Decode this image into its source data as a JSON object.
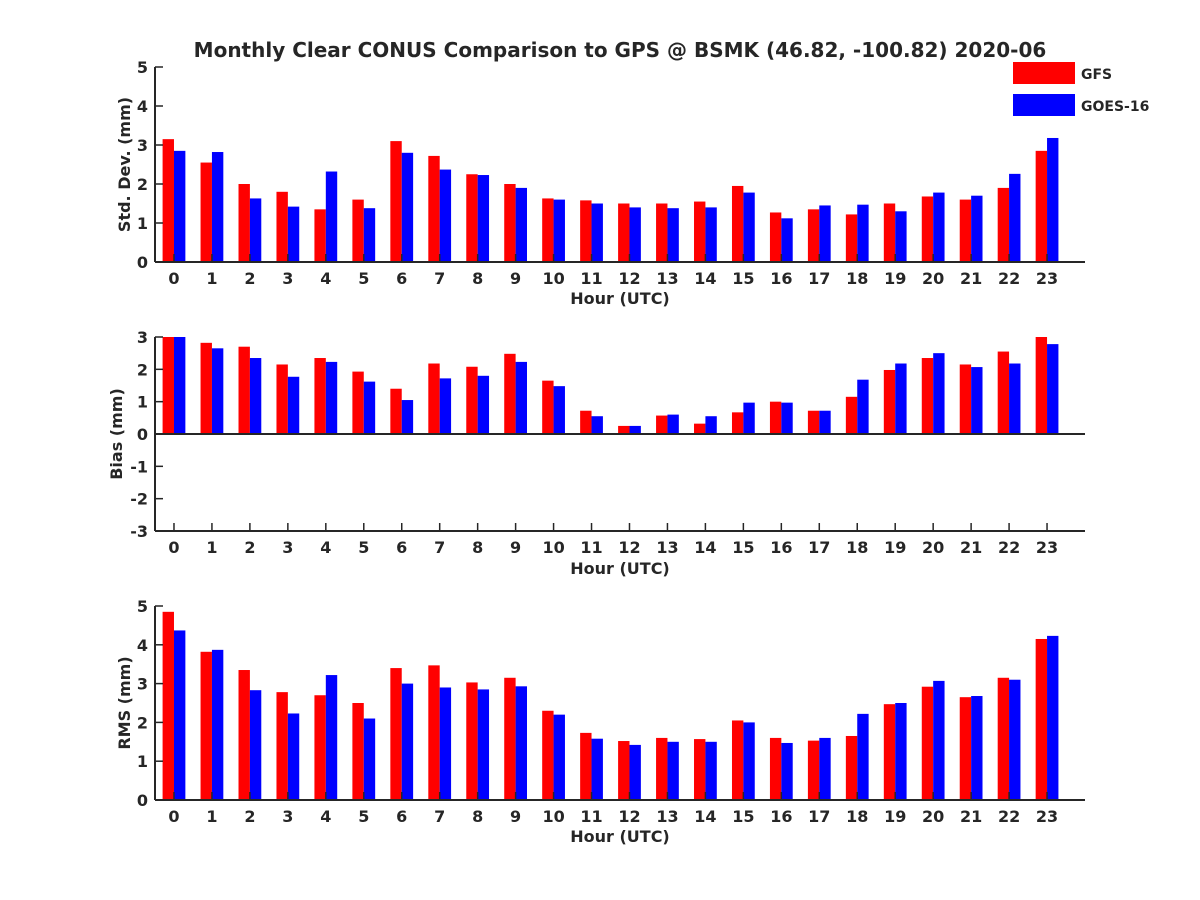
{
  "title": "Monthly Clear CONUS Comparison to GPS @ BSMK (46.82, -100.82) 2020-06",
  "colors": {
    "GFS": "#ff0000",
    "GOES-16": "#0000ff",
    "axis": "#262626"
  },
  "legend": {
    "placement": "top-right",
    "items": [
      "GFS",
      "GOES-16"
    ]
  },
  "chart_data": [
    {
      "type": "bar",
      "xlabel": "Hour (UTC)",
      "ylabel": "Std. Dev. (mm)",
      "ylim": [
        0,
        5
      ],
      "yticks": [
        0,
        1,
        2,
        3,
        4,
        5
      ],
      "categories": [
        "0",
        "1",
        "2",
        "3",
        "4",
        "5",
        "6",
        "7",
        "8",
        "9",
        "10",
        "11",
        "12",
        "13",
        "14",
        "15",
        "16",
        "17",
        "18",
        "19",
        "20",
        "21",
        "22",
        "23"
      ],
      "series": [
        {
          "name": "GFS",
          "values": [
            3.15,
            2.55,
            2.0,
            1.8,
            1.35,
            1.6,
            3.1,
            2.72,
            2.25,
            2.0,
            1.63,
            1.58,
            1.5,
            1.5,
            1.55,
            1.95,
            1.27,
            1.35,
            1.22,
            1.5,
            1.68,
            1.6,
            1.9,
            2.85
          ]
        },
        {
          "name": "GOES-16",
          "values": [
            2.85,
            2.82,
            1.63,
            1.42,
            2.32,
            1.38,
            2.8,
            2.37,
            2.23,
            1.9,
            1.6,
            1.5,
            1.4,
            1.38,
            1.4,
            1.78,
            1.12,
            1.45,
            1.47,
            1.3,
            1.78,
            1.7,
            2.26,
            3.18
          ]
        }
      ]
    },
    {
      "type": "bar",
      "xlabel": "Hour (UTC)",
      "ylabel": "Bias (mm)",
      "ylim": [
        -3,
        3
      ],
      "yticks": [
        -3,
        -2,
        -1,
        0,
        1,
        2,
        3
      ],
      "categories": [
        "0",
        "1",
        "2",
        "3",
        "4",
        "5",
        "6",
        "7",
        "8",
        "9",
        "10",
        "11",
        "12",
        "13",
        "14",
        "15",
        "16",
        "17",
        "18",
        "19",
        "20",
        "21",
        "22",
        "23"
      ],
      "series": [
        {
          "name": "GFS",
          "values": [
            3.0,
            2.82,
            2.7,
            2.15,
            2.35,
            1.93,
            1.4,
            2.18,
            2.08,
            2.48,
            1.65,
            0.72,
            0.25,
            0.57,
            0.32,
            0.67,
            1.0,
            0.72,
            1.15,
            1.98,
            2.35,
            2.15,
            2.55,
            3.0
          ]
        },
        {
          "name": "GOES-16",
          "values": [
            3.0,
            2.65,
            2.35,
            1.77,
            2.23,
            1.62,
            1.05,
            1.72,
            1.8,
            2.23,
            1.48,
            0.55,
            0.25,
            0.6,
            0.55,
            0.97,
            0.97,
            0.72,
            1.68,
            2.18,
            2.5,
            2.07,
            2.18,
            2.78
          ]
        }
      ]
    },
    {
      "type": "bar",
      "xlabel": "Hour (UTC)",
      "ylabel": "RMS (mm)",
      "ylim": [
        0,
        5
      ],
      "yticks": [
        0,
        1,
        2,
        3,
        4,
        5
      ],
      "categories": [
        "0",
        "1",
        "2",
        "3",
        "4",
        "5",
        "6",
        "7",
        "8",
        "9",
        "10",
        "11",
        "12",
        "13",
        "14",
        "15",
        "16",
        "17",
        "18",
        "19",
        "20",
        "21",
        "22",
        "23"
      ],
      "series": [
        {
          "name": "GFS",
          "values": [
            4.85,
            3.82,
            3.35,
            2.78,
            2.7,
            2.5,
            3.4,
            3.47,
            3.03,
            3.15,
            2.3,
            1.73,
            1.52,
            1.6,
            1.57,
            2.05,
            1.6,
            1.53,
            1.65,
            2.47,
            2.92,
            2.65,
            3.15,
            4.15
          ]
        },
        {
          "name": "GOES-16",
          "values": [
            4.37,
            3.87,
            2.83,
            2.23,
            3.22,
            2.1,
            3.0,
            2.9,
            2.85,
            2.93,
            2.2,
            1.58,
            1.42,
            1.5,
            1.5,
            2.0,
            1.47,
            1.6,
            2.22,
            2.5,
            3.07,
            2.68,
            3.1,
            4.23
          ]
        }
      ]
    }
  ]
}
